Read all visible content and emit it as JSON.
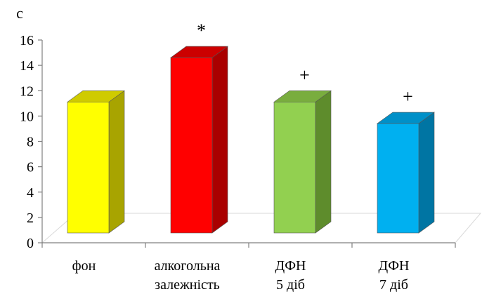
{
  "chart_data": {
    "type": "bar",
    "style": "3d",
    "y_unit": "с",
    "ylim": [
      0,
      16
    ],
    "y_ticks": [
      "0",
      "2",
      "4",
      "6",
      "8",
      "10",
      "12",
      "14",
      "16"
    ],
    "categories": [
      [
        "фон"
      ],
      [
        "алкогольна",
        "залежність"
      ],
      [
        "ДФН",
        "5 діб"
      ],
      [
        "ДФН",
        "7 діб"
      ]
    ],
    "values": [
      11.0,
      14.5,
      11.0,
      9.3
    ],
    "markers": [
      "",
      "*",
      "+",
      "+"
    ],
    "colors": [
      {
        "front": "#ffff00",
        "side": "#a8a400",
        "top": "#cfcb00"
      },
      {
        "front": "#ff0000",
        "side": "#a90000",
        "top": "#cc0000"
      },
      {
        "front": "#92d050",
        "side": "#5e8c2c",
        "top": "#79ad3e"
      },
      {
        "front": "#00b0f0",
        "side": "#0075a3",
        "top": "#0090c8"
      }
    ],
    "grid": false,
    "legend": "none"
  }
}
